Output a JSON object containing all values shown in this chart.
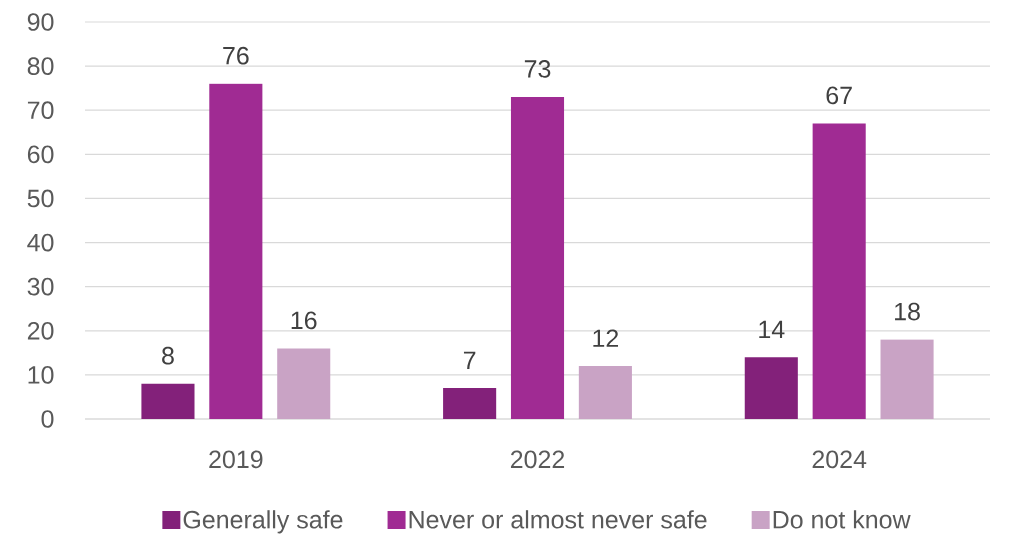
{
  "chart_data": {
    "type": "bar",
    "categories": [
      "2019",
      "2022",
      "2024"
    ],
    "series": [
      {
        "name": "Generally safe",
        "color": "#83217a",
        "values": [
          8,
          7,
          14
        ]
      },
      {
        "name": "Never or almost never safe",
        "color": "#a02b93",
        "values": [
          76,
          73,
          67
        ]
      },
      {
        "name": "Do not know",
        "color": "#c9a3c5",
        "values": [
          16,
          12,
          18
        ]
      }
    ],
    "ylim": [
      0,
      90
    ],
    "yticks": [
      0,
      10,
      20,
      30,
      40,
      50,
      60,
      70,
      80,
      90
    ],
    "grid": "y",
    "legend": "bottom",
    "data_labels": true
  }
}
